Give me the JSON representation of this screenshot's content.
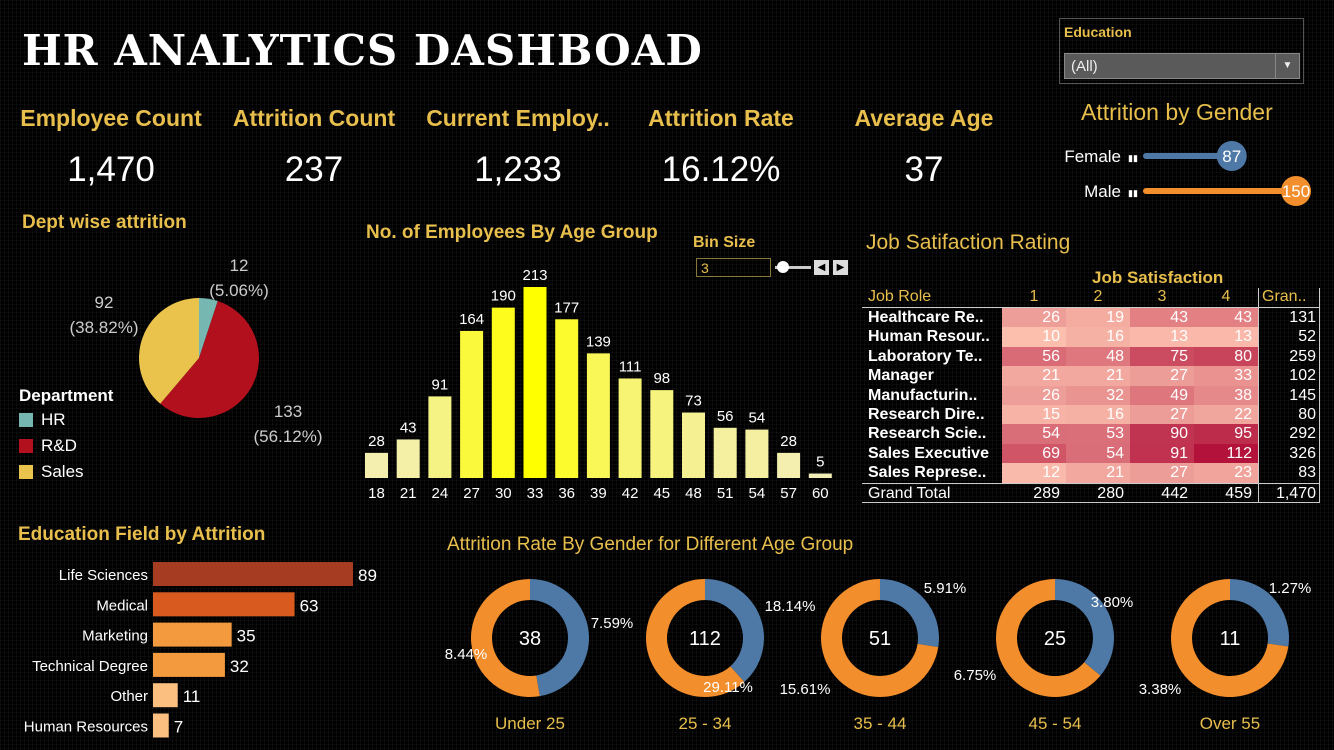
{
  "title": "HR ANALYTICS DASHBOAD",
  "filter": {
    "label": "Education",
    "value": "(All)"
  },
  "kpis": [
    {
      "label": "Employee Count",
      "value": "1,470"
    },
    {
      "label": "Attrition Count",
      "value": "237"
    },
    {
      "label": "Current Employ..",
      "value": "1,233"
    },
    {
      "label": "Attrition Rate",
      "value": "16.12%"
    },
    {
      "label": "Average Age",
      "value": "37"
    }
  ],
  "colors": {
    "gold": "#e8bf4c",
    "female": "#4e79a7",
    "male": "#f28e2b"
  },
  "chart_data": [
    {
      "id": "gender",
      "type": "bar",
      "title": "Attrition by Gender",
      "categories": [
        "Female",
        "Male"
      ],
      "values": [
        87,
        150
      ],
      "max": 150
    },
    {
      "id": "dept",
      "type": "pie",
      "title": "Dept wise attrition",
      "legend_title": "Department",
      "categories": [
        "HR",
        "R&D",
        "Sales"
      ],
      "values": [
        12,
        133,
        92
      ],
      "labels": [
        "(5.06%)",
        "(56.12%)",
        "(38.82%)"
      ],
      "colors": [
        "#76b7b2",
        "#b3101e",
        "#e9c34b"
      ]
    },
    {
      "id": "age",
      "type": "bar",
      "title": "No. of Employees By Age Group",
      "bin_label": "Bin Size",
      "bin_value": "3",
      "categories": [
        "18",
        "21",
        "24",
        "27",
        "30",
        "33",
        "36",
        "39",
        "42",
        "45",
        "48",
        "51",
        "54",
        "57",
        "60"
      ],
      "values": [
        28,
        43,
        91,
        164,
        190,
        213,
        177,
        139,
        111,
        98,
        73,
        56,
        54,
        28,
        5
      ],
      "ylim": [
        0,
        213
      ]
    },
    {
      "id": "jobsat",
      "type": "heatmap",
      "title": "Job Satifaction Rating",
      "col_header": "Job Satisfaction",
      "row_header": "Job Role",
      "columns": [
        "1",
        "2",
        "3",
        "4"
      ],
      "total_label": "Gran..",
      "grand_label": "Grand Total",
      "rows": [
        {
          "role": "Healthcare Re..",
          "values": [
            26,
            19,
            43,
            43
          ],
          "total": "131"
        },
        {
          "role": "Human Resour..",
          "values": [
            10,
            16,
            13,
            13
          ],
          "total": "52"
        },
        {
          "role": "Laboratory Te..",
          "values": [
            56,
            48,
            75,
            80
          ],
          "total": "259"
        },
        {
          "role": "Manager",
          "values": [
            21,
            21,
            27,
            33
          ],
          "total": "102"
        },
        {
          "role": "Manufacturin..",
          "values": [
            26,
            32,
            49,
            38
          ],
          "total": "145"
        },
        {
          "role": "Research Dire..",
          "values": [
            15,
            16,
            27,
            22
          ],
          "total": "80"
        },
        {
          "role": "Research Scie..",
          "values": [
            54,
            53,
            90,
            95
          ],
          "total": "292"
        },
        {
          "role": "Sales Executive",
          "values": [
            69,
            54,
            91,
            112
          ],
          "total": "326"
        },
        {
          "role": "Sales Represe..",
          "values": [
            12,
            21,
            27,
            23
          ],
          "total": "83"
        }
      ],
      "grand": [
        "289",
        "280",
        "442",
        "459",
        "1,470"
      ]
    },
    {
      "id": "edu",
      "type": "bar",
      "title": "Education Field by Attrition",
      "categories": [
        "Life Sciences",
        "Medical",
        "Marketing",
        "Technical Degree",
        "Other",
        "Human Resources"
      ],
      "values": [
        89,
        63,
        35,
        32,
        11,
        7
      ],
      "colors": [
        "#a63d22",
        "#d95a1f",
        "#f39a3e",
        "#f39a3e",
        "#fbbf80",
        "#fbbf80"
      ]
    },
    {
      "id": "donuts",
      "type": "pie",
      "title": "Attrition Rate By Gender for Different Age Group",
      "groups": [
        {
          "label": "Under 25",
          "total": "38",
          "female": 7.59,
          "male": 8.44,
          "female_label": "7.59%",
          "male_label": "8.44%"
        },
        {
          "label": "25 - 34",
          "total": "112",
          "female": 18.14,
          "male": 29.11,
          "female_label": "18.14%",
          "male_label": "29.11%"
        },
        {
          "label": "35 - 44",
          "total": "51",
          "female": 5.91,
          "male": 15.61,
          "female_label": "5.91%",
          "male_label": "15.61%"
        },
        {
          "label": "45 - 54",
          "total": "25",
          "female": 3.8,
          "male": 6.75,
          "female_label": "3.80%",
          "male_label": "6.75%"
        },
        {
          "label": "Over 55",
          "total": "11",
          "female": 1.27,
          "male": 3.38,
          "female_label": "1.27%",
          "male_label": "3.38%"
        }
      ]
    }
  ]
}
